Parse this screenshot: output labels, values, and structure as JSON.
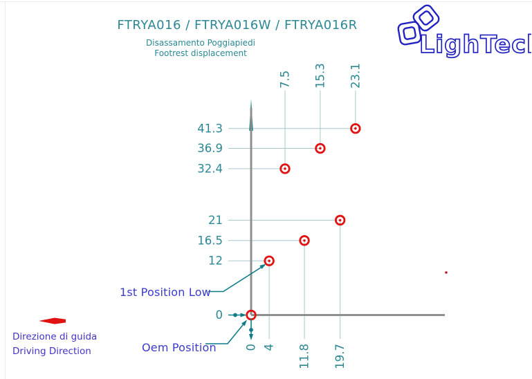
{
  "header": {
    "title": "FTRYA016 / FTRYA016W / FTRYA016R",
    "subtitle_line1": "Disassamento Poggiapiedi",
    "subtitle_line2": "Footrest displacement"
  },
  "logo": {
    "text": "LighTech"
  },
  "annotations": {
    "first_position_low": "1st Position Low",
    "oem_position": "Oem Position"
  },
  "direction": {
    "line1": "Direzione di guida",
    "line2": "Driving Direction"
  },
  "colors": {
    "teal_text": "#2a8793",
    "light_leader": "#a7c6cb",
    "dark_teal": "#0d7b88",
    "marker_red": "#e11212",
    "axis_gray": "#8f8f8f",
    "annotation_blue": "#3a3acc",
    "logo_blue": "#2222c2",
    "direction_blue": "#4134c9"
  },
  "chart_data": {
    "type": "scatter",
    "title": "FTRYA016 / FTRYA016W / FTRYA016R",
    "subtitle": [
      "Disassamento Poggiapiedi",
      "Footrest displacement"
    ],
    "xlabel": "",
    "ylabel": "",
    "x_axis": {
      "top_tick_labels": [
        "7.5",
        "15.3",
        "23.1"
      ],
      "bottom_tick_labels": [
        "0",
        "4",
        "11.8",
        "19.7"
      ]
    },
    "y_axis": {
      "tick_labels": [
        "41.3",
        "36.9",
        "32.4",
        "21",
        "16.5",
        "12",
        "0"
      ]
    },
    "points": [
      {
        "x": 0,
        "y": 0,
        "tick_side": "bottom",
        "annotation": "Oem Position"
      },
      {
        "x": 4,
        "y": 12,
        "tick_side": "bottom",
        "annotation": "1st Position Low"
      },
      {
        "x": 11.8,
        "y": 16.5,
        "tick_side": "bottom"
      },
      {
        "x": 19.7,
        "y": 21,
        "tick_side": "bottom"
      },
      {
        "x": 7.5,
        "y": 32.4,
        "tick_side": "top"
      },
      {
        "x": 15.3,
        "y": 36.9,
        "tick_side": "top"
      },
      {
        "x": 23.1,
        "y": 41.3,
        "tick_side": "top"
      }
    ],
    "legend": null,
    "grid": false
  }
}
